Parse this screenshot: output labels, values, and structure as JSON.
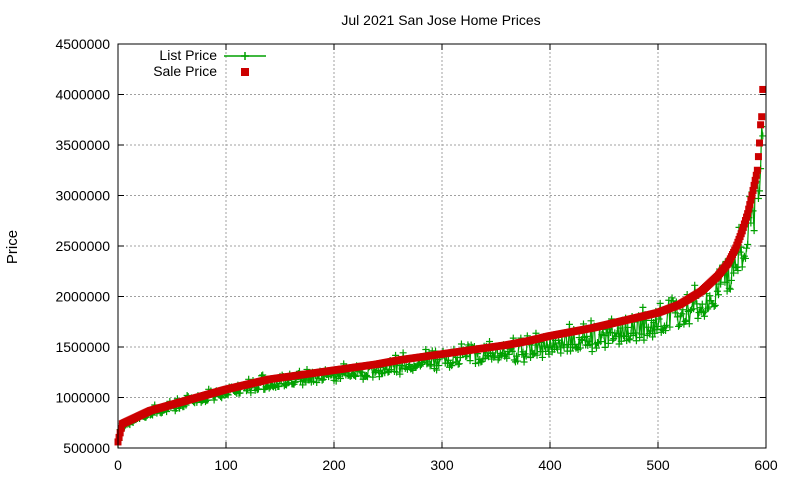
{
  "chart_data": {
    "type": "scatter",
    "title": "Jul 2021 San Jose Home Prices",
    "xlabel": "",
    "ylabel": "Price",
    "xlim": [
      0,
      600
    ],
    "ylim": [
      500000,
      4500000
    ],
    "xticks": [
      0,
      100,
      200,
      300,
      400,
      500,
      600
    ],
    "yticks": [
      500000,
      1000000,
      1500000,
      2000000,
      2500000,
      3000000,
      3500000,
      4000000,
      4500000
    ],
    "grid": true,
    "legend_position": "top-left",
    "sale_curve": [
      [
        0,
        560000
      ],
      [
        2,
        650000
      ],
      [
        4,
        740000
      ],
      [
        10,
        770000
      ],
      [
        20,
        820000
      ],
      [
        30,
        870000
      ],
      [
        40,
        900000
      ],
      [
        60,
        960000
      ],
      [
        80,
        1020000
      ],
      [
        100,
        1080000
      ],
      [
        120,
        1130000
      ],
      [
        140,
        1180000
      ],
      [
        160,
        1210000
      ],
      [
        180,
        1240000
      ],
      [
        200,
        1270000
      ],
      [
        220,
        1300000
      ],
      [
        240,
        1330000
      ],
      [
        260,
        1370000
      ],
      [
        280,
        1400000
      ],
      [
        300,
        1430000
      ],
      [
        320,
        1460000
      ],
      [
        340,
        1490000
      ],
      [
        360,
        1520000
      ],
      [
        380,
        1560000
      ],
      [
        400,
        1610000
      ],
      [
        420,
        1650000
      ],
      [
        440,
        1690000
      ],
      [
        460,
        1740000
      ],
      [
        480,
        1790000
      ],
      [
        500,
        1840000
      ],
      [
        520,
        1920000
      ],
      [
        540,
        2050000
      ],
      [
        555,
        2200000
      ],
      [
        565,
        2330000
      ],
      [
        572,
        2480000
      ],
      [
        578,
        2650000
      ],
      [
        583,
        2820000
      ],
      [
        587,
        3000000
      ],
      [
        590,
        3150000
      ],
      [
        592,
        3250000
      ],
      [
        594,
        3520000
      ],
      [
        595,
        3700000
      ],
      [
        596,
        3780000
      ],
      [
        597,
        4050000
      ]
    ],
    "series": [
      {
        "name": "List Price",
        "color": "#00a000",
        "marker": "plus",
        "line": true
      },
      {
        "name": "Sale Price",
        "color": "#cc0000",
        "marker": "square",
        "line": false
      }
    ]
  }
}
